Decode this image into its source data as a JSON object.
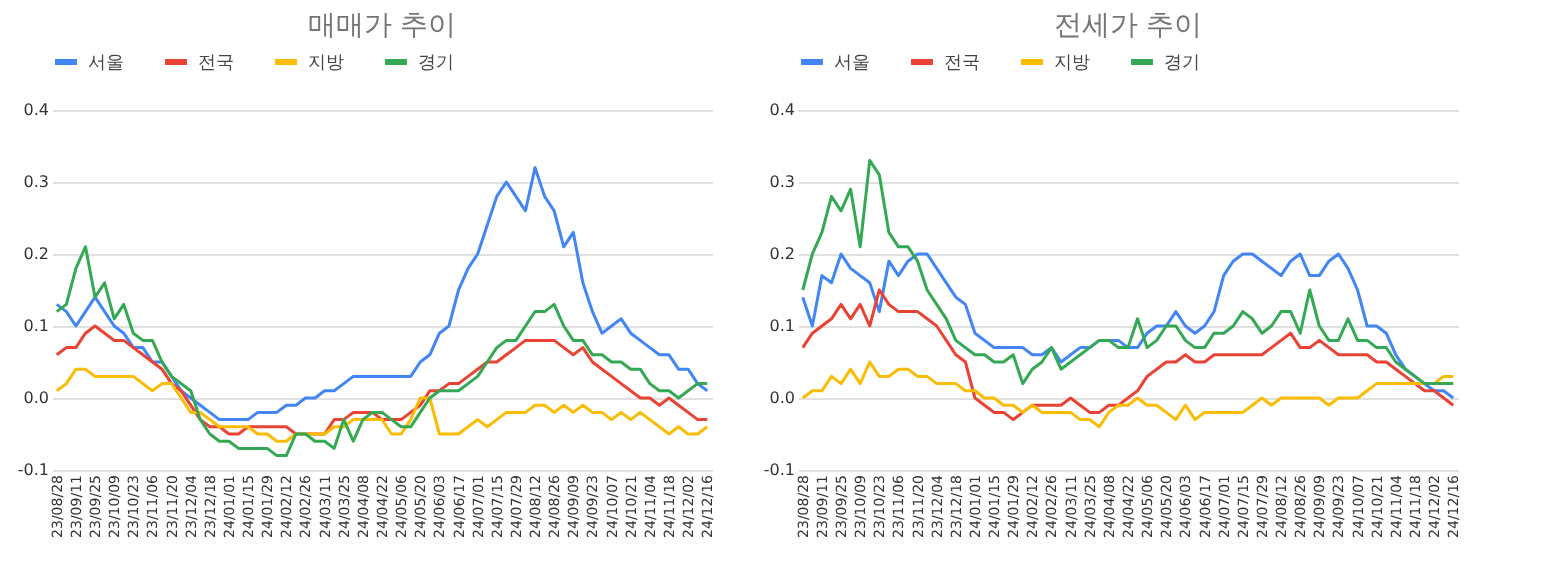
{
  "chart_data": [
    {
      "type": "line",
      "title": "매매가 추이",
      "legend": "top",
      "grid": "y",
      "ylim": [
        -0.1,
        0.4
      ],
      "yticks": [
        -0.1,
        {
          "value": 0,
          "label": "0.0"
        },
        0.1,
        0.2,
        0.3,
        0.4
      ],
      "categories": [
        "23/08/28",
        null,
        "23/09/11",
        null,
        "23/09/25",
        null,
        "23/10/09",
        null,
        "23/10/23",
        null,
        "23/11/06",
        null,
        "23/11/20",
        null,
        "23/12/04",
        null,
        "23/12/18",
        null,
        "24/01/01",
        null,
        "24/01/15",
        null,
        "24/01/29",
        null,
        "24/02/12",
        null,
        "24/02/26",
        null,
        "24/03/11",
        null,
        "24/03/25",
        null,
        "24/04/08",
        null,
        "24/04/22",
        null,
        "24/05/06",
        null,
        "24/05/20",
        null,
        "24/06/03",
        null,
        "24/06/17",
        null,
        "24/07/01",
        null,
        "24/07/15",
        null,
        "24/07/29",
        null,
        "24/08/12",
        null,
        "24/08/26",
        null,
        "24/09/09",
        null,
        "24/09/23",
        null,
        "24/10/07",
        null,
        "24/10/21",
        null,
        "24/11/04",
        null,
        "24/11/18",
        null,
        "24/12/02",
        null,
        "24/12/16"
      ],
      "series": [
        {
          "name": "서울",
          "color": "#4285f4",
          "values": [
            0.13,
            0.12,
            0.1,
            0.12,
            0.14,
            0.12,
            0.1,
            0.09,
            0.07,
            0.07,
            0.05,
            0.05,
            0.03,
            0.01,
            0,
            -0.01,
            -0.02,
            -0.03,
            -0.03,
            -0.03,
            -0.03,
            -0.02,
            -0.02,
            -0.02,
            -0.01,
            -0.01,
            0,
            0,
            0.01,
            0.01,
            0.02,
            0.03,
            0.03,
            0.03,
            0.03,
            0.03,
            0.03,
            0.03,
            0.05,
            0.06,
            0.09,
            0.1,
            0.15,
            0.18,
            0.2,
            0.24,
            0.28,
            0.3,
            0.28,
            0.26,
            0.32,
            0.28,
            0.26,
            0.21,
            0.23,
            0.16,
            0.12,
            0.09,
            0.1,
            0.11,
            0.09,
            0.08,
            0.07,
            0.06,
            0.06,
            0.04,
            0.04,
            0.02,
            0.01
          ]
        },
        {
          "name": "전국",
          "color": "#ea4335",
          "values": [
            0.06,
            0.07,
            0.07,
            0.09,
            0.1,
            0.09,
            0.08,
            0.08,
            0.07,
            0.06,
            0.05,
            0.04,
            0.02,
            0.01,
            -0.01,
            -0.03,
            -0.04,
            -0.04,
            -0.05,
            -0.05,
            -0.04,
            -0.04,
            -0.04,
            -0.04,
            -0.04,
            -0.05,
            -0.05,
            -0.05,
            -0.05,
            -0.03,
            -0.03,
            -0.02,
            -0.02,
            -0.02,
            -0.03,
            -0.03,
            -0.03,
            -0.02,
            -0.01,
            0.01,
            0.01,
            0.02,
            0.02,
            0.03,
            0.04,
            0.05,
            0.05,
            0.06,
            0.07,
            0.08,
            0.08,
            0.08,
            0.08,
            0.07,
            0.06,
            0.07,
            0.05,
            0.04,
            0.03,
            0.02,
            0.01,
            0,
            0,
            -0.01,
            0,
            -0.01,
            -0.02,
            -0.03,
            -0.03
          ]
        },
        {
          "name": "지방",
          "color": "#fbbc04",
          "values": [
            0.01,
            0.02,
            0.04,
            0.04,
            0.03,
            0.03,
            0.03,
            0.03,
            0.03,
            0.02,
            0.01,
            0.02,
            0.02,
            0,
            -0.02,
            -0.02,
            -0.03,
            -0.04,
            -0.04,
            -0.04,
            -0.04,
            -0.05,
            -0.05,
            -0.06,
            -0.06,
            -0.05,
            -0.05,
            -0.05,
            -0.05,
            -0.04,
            -0.04,
            -0.03,
            -0.03,
            -0.03,
            -0.03,
            -0.05,
            -0.05,
            -0.03,
            0,
            0,
            -0.05,
            -0.05,
            -0.05,
            -0.04,
            -0.03,
            -0.04,
            -0.03,
            -0.02,
            -0.02,
            -0.02,
            -0.01,
            -0.01,
            -0.02,
            -0.01,
            -0.02,
            -0.01,
            -0.02,
            -0.02,
            -0.03,
            -0.02,
            -0.03,
            -0.02,
            -0.03,
            -0.04,
            -0.05,
            -0.04,
            -0.05,
            -0.05,
            -0.04
          ]
        },
        {
          "name": "경기",
          "color": "#34a853",
          "values": [
            0.12,
            0.13,
            0.18,
            0.21,
            0.14,
            0.16,
            0.11,
            0.13,
            0.09,
            0.08,
            0.08,
            0.05,
            0.03,
            0.02,
            0.01,
            -0.03,
            -0.05,
            -0.06,
            -0.06,
            -0.07,
            -0.07,
            -0.07,
            -0.07,
            -0.08,
            -0.08,
            -0.05,
            -0.05,
            -0.06,
            -0.06,
            -0.07,
            -0.03,
            -0.06,
            -0.03,
            -0.02,
            -0.02,
            -0.03,
            -0.04,
            -0.04,
            -0.02,
            0,
            0.01,
            0.01,
            0.01,
            0.02,
            0.03,
            0.05,
            0.07,
            0.08,
            0.08,
            0.1,
            0.12,
            0.12,
            0.13,
            0.1,
            0.08,
            0.08,
            0.06,
            0.06,
            0.05,
            0.05,
            0.04,
            0.04,
            0.02,
            0.01,
            0.01,
            0,
            0.01,
            0.02,
            0.02
          ]
        }
      ]
    },
    {
      "type": "line",
      "title": "전세가 추이",
      "legend": "top",
      "grid": "y",
      "ylim": [
        -0.1,
        0.4
      ],
      "yticks": [
        -0.1,
        {
          "value": 0,
          "label": "0.0"
        },
        0.1,
        0.2,
        0.3,
        0.4
      ],
      "categories": [
        "23/08/28",
        null,
        "23/09/11",
        null,
        "23/09/25",
        null,
        "23/10/09",
        null,
        "23/10/23",
        null,
        "23/11/06",
        null,
        "23/11/20",
        null,
        "23/12/04",
        null,
        "23/12/18",
        null,
        "24/01/01",
        null,
        "24/01/15",
        null,
        "24/01/29",
        null,
        "24/02/12",
        null,
        "24/02/26",
        null,
        "24/03/11",
        null,
        "24/03/25",
        null,
        "24/04/08",
        null,
        "24/04/22",
        null,
        "24/05/06",
        null,
        "24/05/20",
        null,
        "24/06/03",
        null,
        "24/06/17",
        null,
        "24/07/01",
        null,
        "24/07/15",
        null,
        "24/07/29",
        null,
        "24/08/12",
        null,
        "24/08/26",
        null,
        "24/09/09",
        null,
        "24/09/23",
        null,
        "24/10/07",
        null,
        "24/10/21",
        null,
        "24/11/04",
        null,
        "24/11/18",
        null,
        "24/12/02",
        null,
        "24/12/16"
      ],
      "series": [
        {
          "name": "서울",
          "color": "#4285f4",
          "values": [
            0.14,
            0.1,
            0.17,
            0.16,
            0.2,
            0.18,
            0.17,
            0.16,
            0.12,
            0.19,
            0.17,
            0.19,
            0.2,
            0.2,
            0.18,
            0.16,
            0.14,
            0.13,
            0.09,
            0.08,
            0.07,
            0.07,
            0.07,
            0.07,
            0.06,
            0.06,
            0.07,
            0.05,
            0.06,
            0.07,
            0.07,
            0.08,
            0.08,
            0.08,
            0.07,
            0.07,
            0.09,
            0.1,
            0.1,
            0.12,
            0.1,
            0.09,
            0.1,
            0.12,
            0.17,
            0.19,
            0.2,
            0.2,
            0.19,
            0.18,
            0.17,
            0.19,
            0.2,
            0.17,
            0.17,
            0.19,
            0.2,
            0.18,
            0.15,
            0.1,
            0.1,
            0.09,
            0.06,
            0.04,
            0.03,
            0.02,
            0.01,
            0.01,
            0
          ]
        },
        {
          "name": "전국",
          "color": "#ea4335",
          "values": [
            0.07,
            0.09,
            0.1,
            0.11,
            0.13,
            0.11,
            0.13,
            0.1,
            0.15,
            0.13,
            0.12,
            0.12,
            0.12,
            0.11,
            0.1,
            0.08,
            0.06,
            0.05,
            0,
            -0.01,
            -0.02,
            -0.02,
            -0.03,
            -0.02,
            -0.01,
            -0.01,
            -0.01,
            -0.01,
            0,
            -0.01,
            -0.02,
            -0.02,
            -0.01,
            -0.01,
            0,
            0.01,
            0.03,
            0.04,
            0.05,
            0.05,
            0.06,
            0.05,
            0.05,
            0.06,
            0.06,
            0.06,
            0.06,
            0.06,
            0.06,
            0.07,
            0.08,
            0.09,
            0.07,
            0.07,
            0.08,
            0.07,
            0.06,
            0.06,
            0.06,
            0.06,
            0.05,
            0.05,
            0.04,
            0.03,
            0.02,
            0.01,
            0.01,
            0,
            -0.01
          ]
        },
        {
          "name": "지방",
          "color": "#fbbc04",
          "values": [
            0,
            0.01,
            0.01,
            0.03,
            0.02,
            0.04,
            0.02,
            0.05,
            0.03,
            0.03,
            0.04,
            0.04,
            0.03,
            0.03,
            0.02,
            0.02,
            0.02,
            0.01,
            0.01,
            0,
            0,
            -0.01,
            -0.01,
            -0.02,
            -0.01,
            -0.02,
            -0.02,
            -0.02,
            -0.02,
            -0.03,
            -0.03,
            -0.04,
            -0.02,
            -0.01,
            -0.01,
            0,
            -0.01,
            -0.01,
            -0.02,
            -0.03,
            -0.01,
            -0.03,
            -0.02,
            -0.02,
            -0.02,
            -0.02,
            -0.02,
            -0.01,
            0,
            -0.01,
            0,
            0,
            0,
            0,
            0,
            -0.01,
            0,
            0,
            0,
            0.01,
            0.02,
            0.02,
            0.02,
            0.02,
            0.02,
            0.02,
            0.02,
            0.03,
            0.03
          ]
        },
        {
          "name": "경기",
          "color": "#34a853",
          "values": [
            0.15,
            0.2,
            0.23,
            0.28,
            0.26,
            0.29,
            0.21,
            0.33,
            0.31,
            0.23,
            0.21,
            0.21,
            0.19,
            0.15,
            0.13,
            0.11,
            0.08,
            0.07,
            0.06,
            0.06,
            0.05,
            0.05,
            0.06,
            0.02,
            0.04,
            0.05,
            0.07,
            0.04,
            0.05,
            0.06,
            0.07,
            0.08,
            0.08,
            0.07,
            0.07,
            0.11,
            0.07,
            0.08,
            0.1,
            0.1,
            0.08,
            0.07,
            0.07,
            0.09,
            0.09,
            0.1,
            0.12,
            0.11,
            0.09,
            0.1,
            0.12,
            0.12,
            0.09,
            0.15,
            0.1,
            0.08,
            0.08,
            0.11,
            0.08,
            0.08,
            0.07,
            0.07,
            0.05,
            0.04,
            0.03,
            0.02,
            0.02,
            0.02,
            0.02
          ]
        }
      ]
    }
  ]
}
